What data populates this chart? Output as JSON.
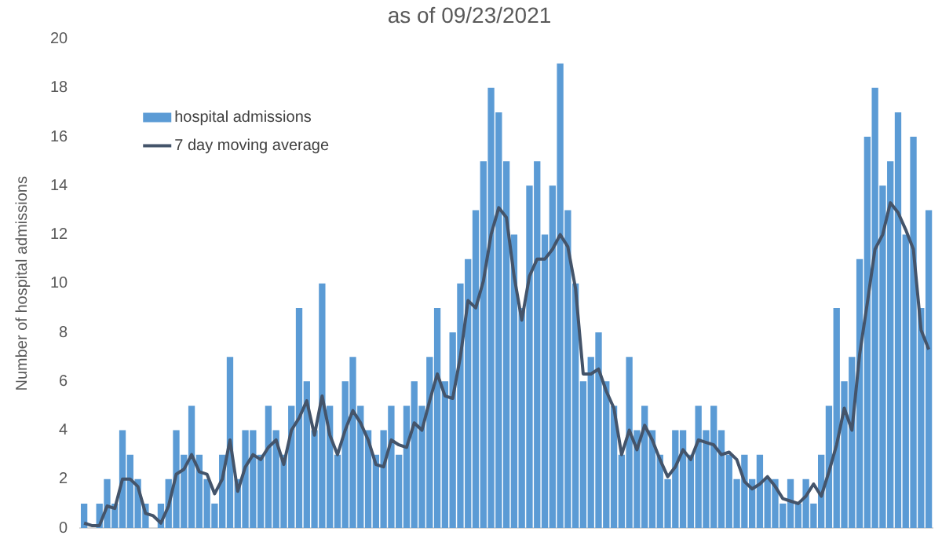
{
  "chart_data": {
    "type": "bar",
    "title": "as of 09/23/2021",
    "ylabel": "Number of hospital admissions",
    "categories": [
      null,
      null,
      null,
      null,
      null,
      null,
      null,
      null,
      null,
      null,
      null,
      null,
      null,
      null,
      null,
      null,
      null,
      null,
      null,
      null,
      null,
      null,
      null,
      null,
      null,
      null,
      null,
      null,
      null,
      null,
      null,
      null,
      null,
      null,
      null,
      null,
      null,
      null,
      null,
      null,
      null,
      null,
      null,
      null,
      null,
      null,
      null,
      null,
      null,
      null,
      null,
      null,
      null,
      null,
      null,
      null,
      null,
      null,
      null,
      null,
      null,
      null,
      null,
      null,
      null,
      null,
      null,
      null,
      null,
      null,
      null,
      null,
      null,
      null,
      null,
      null,
      null,
      null,
      null,
      null,
      null,
      null,
      null,
      null,
      null,
      null,
      null,
      null,
      null,
      null,
      null,
      null,
      null,
      null,
      null,
      null,
      null,
      null,
      null,
      null,
      null,
      null,
      null,
      null,
      null,
      null,
      null,
      null,
      null,
      null,
      null
    ],
    "series": [
      {
        "name": "hospital admissions",
        "color": "#5b9bd5",
        "values": [
          1,
          0,
          1,
          2,
          1,
          4,
          3,
          2,
          1,
          0,
          1,
          2,
          4,
          3,
          5,
          3,
          2,
          1,
          3,
          7,
          2,
          4,
          4,
          3,
          5,
          4,
          3,
          5,
          9,
          6,
          4,
          10,
          5,
          3,
          6,
          7,
          5,
          4,
          3,
          4,
          5,
          3,
          5,
          6,
          5,
          7,
          9,
          6,
          8,
          10,
          11,
          13,
          15,
          18,
          17,
          15,
          12,
          9,
          14,
          15,
          12,
          14,
          19,
          13,
          10,
          6,
          7,
          8,
          6,
          5,
          3,
          7,
          4,
          5,
          4,
          3,
          2,
          4,
          4,
          3,
          5,
          4,
          5,
          4,
          3,
          2,
          3,
          2,
          3,
          2,
          2,
          1,
          2,
          1,
          2,
          1,
          3,
          5,
          9,
          6,
          7,
          11,
          16,
          18,
          14,
          15,
          17,
          12,
          16,
          9,
          13
        ]
      },
      {
        "name": "7 day moving average",
        "type": "line",
        "color": "#44546a",
        "values": [
          0.2,
          0.1,
          0.1,
          0.9,
          0.8,
          2.0,
          2.0,
          1.7,
          0.6,
          0.5,
          0.2,
          0.9,
          2.2,
          2.4,
          3.0,
          2.3,
          2.2,
          1.4,
          2.0,
          3.6,
          1.5,
          2.5,
          3.0,
          2.8,
          3.3,
          3.6,
          2.6,
          4.0,
          4.5,
          5.2,
          3.8,
          5.4,
          3.8,
          3.0,
          4.0,
          4.8,
          4.3,
          3.6,
          2.6,
          2.5,
          3.6,
          3.4,
          3.3,
          4.3,
          4.0,
          5.2,
          6.3,
          5.4,
          5.3,
          7.0,
          9.3,
          9.0,
          10.1,
          12.0,
          13.1,
          12.7,
          10.3,
          8.5,
          10.3,
          11.0,
          11.0,
          11.4,
          12.0,
          11.5,
          9.8,
          6.3,
          6.3,
          6.5,
          5.6,
          4.9,
          3.0,
          4.0,
          3.2,
          4.2,
          3.6,
          2.8,
          2.1,
          2.5,
          3.2,
          2.8,
          3.6,
          3.5,
          3.4,
          3.0,
          3.1,
          2.8,
          1.9,
          1.6,
          1.8,
          2.1,
          1.7,
          1.2,
          1.1,
          1.0,
          1.3,
          1.8,
          1.3,
          2.3,
          3.4,
          4.9,
          4.0,
          7.1,
          9.2,
          11.4,
          12.0,
          13.3,
          12.9,
          12.2,
          11.4,
          8.1,
          7.3
        ]
      }
    ],
    "ylim": [
      0,
      20
    ],
    "yticks": [
      0,
      2,
      4,
      6,
      8,
      10,
      12,
      14,
      16,
      18,
      20
    ],
    "grid": false,
    "legend": "top left",
    "tick_labels": "y",
    "marker": "none",
    "line_style": "solid"
  }
}
